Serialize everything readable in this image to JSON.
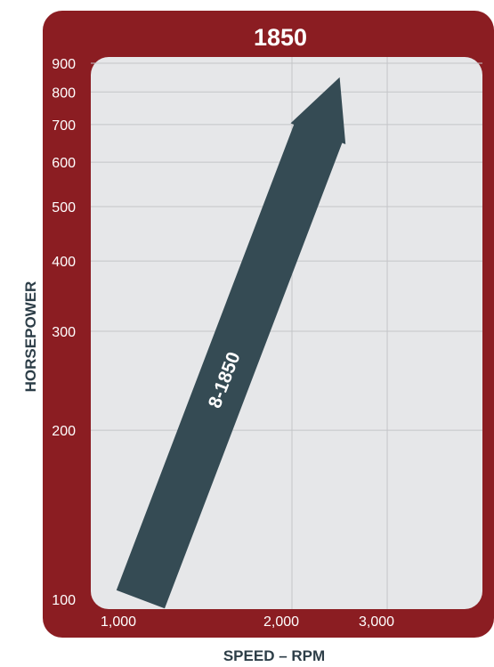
{
  "chart_data": {
    "type": "line",
    "title": "1850",
    "xlabel": "SPEED – RPM",
    "ylabel": "HORSEPOWER",
    "x_scale": "log",
    "y_scale": "log",
    "xlim": [
      1000,
      3700
    ],
    "ylim": [
      100,
      900
    ],
    "x_ticks": [
      {
        "value": 1000,
        "label": "1,000"
      },
      {
        "value": 2000,
        "label": "2,000"
      },
      {
        "value": 3000,
        "label": "3,000"
      }
    ],
    "y_ticks": [
      {
        "value": 100,
        "label": "100"
      },
      {
        "value": 200,
        "label": "200"
      },
      {
        "value": 300,
        "label": "300"
      },
      {
        "value": 400,
        "label": "400"
      },
      {
        "value": 500,
        "label": "500"
      },
      {
        "value": 600,
        "label": "600"
      },
      {
        "value": 700,
        "label": "700"
      },
      {
        "value": 800,
        "label": "800"
      },
      {
        "value": 900,
        "label": "900"
      }
    ],
    "grid": true,
    "series": [
      {
        "name": "8-1850",
        "color": "#354b54",
        "x": [
          1050,
          2450
        ],
        "y": [
          100,
          850
        ]
      }
    ],
    "colors": {
      "frame": "#8b1d22",
      "plot_bg": "#e6e7e9",
      "grid": "#c4c5c8"
    }
  }
}
